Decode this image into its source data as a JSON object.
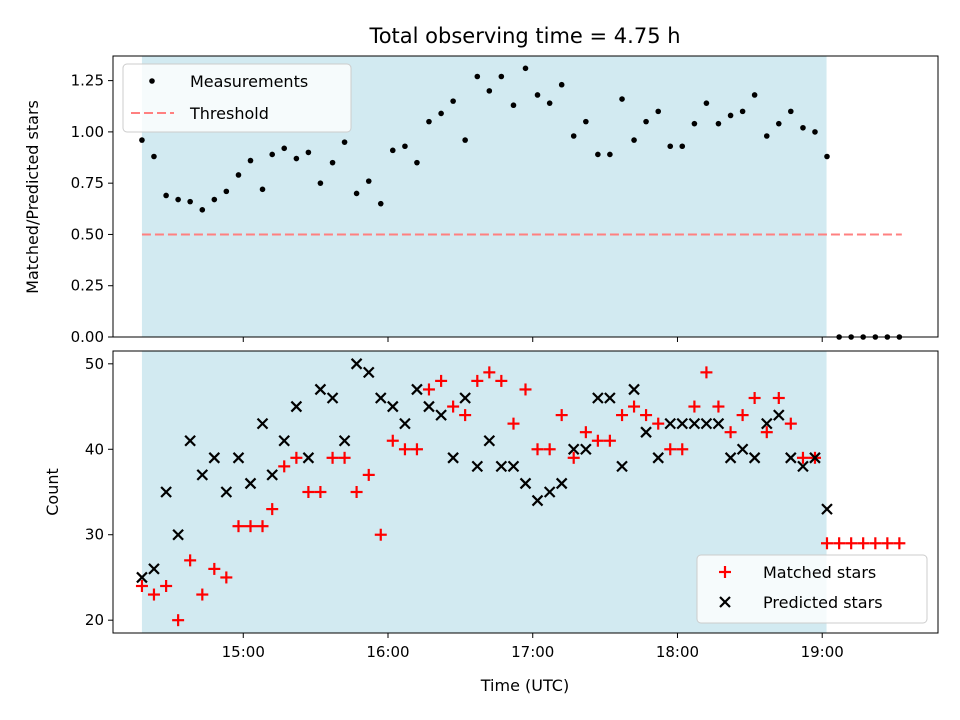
{
  "chart_data": [
    {
      "type": "scatter",
      "title": "Total observing time = 4.75 h",
      "xlabel": "",
      "ylabel": "Matched/Predicted stars",
      "x_unit": "hours (UTC)",
      "xlim": [
        14.1,
        19.8
      ],
      "ylim": [
        0,
        1.37
      ],
      "yticks": [
        0.0,
        0.25,
        0.5,
        0.75,
        1.0,
        1.25
      ],
      "ytick_labels": [
        "0.00",
        "0.25",
        "0.50",
        "0.75",
        "1.00",
        "1.25"
      ],
      "shaded_interval": [
        14.3,
        19.03
      ],
      "shade_color": "#add8e6",
      "legend_position": "upper-left",
      "threshold": {
        "name": "Threshold",
        "value": 0.5,
        "x_range": [
          14.3,
          19.55
        ],
        "color": "#ff8080"
      },
      "series": [
        {
          "name": "Measurements",
          "color": "#000000",
          "marker": "dot",
          "x": [
            14.3,
            14.383,
            14.467,
            14.55,
            14.633,
            14.717,
            14.8,
            14.883,
            14.967,
            15.05,
            15.133,
            15.2,
            15.283,
            15.367,
            15.45,
            15.533,
            15.617,
            15.7,
            15.783,
            15.867,
            15.95,
            16.033,
            16.117,
            16.2,
            16.283,
            16.367,
            16.45,
            16.533,
            16.617,
            16.7,
            16.783,
            16.867,
            16.95,
            17.033,
            17.117,
            17.2,
            17.283,
            17.367,
            17.45,
            17.533,
            17.617,
            17.7,
            17.783,
            17.867,
            17.95,
            18.033,
            18.117,
            18.2,
            18.283,
            18.367,
            18.45,
            18.533,
            18.617,
            18.7,
            18.783,
            18.867,
            18.95,
            19.033,
            19.117,
            19.2,
            19.283,
            19.367,
            19.45,
            19.533
          ],
          "y": [
            0.96,
            0.88,
            0.69,
            0.67,
            0.66,
            0.62,
            0.67,
            0.71,
            0.79,
            0.86,
            0.72,
            0.89,
            0.92,
            0.87,
            0.9,
            0.75,
            0.85,
            0.95,
            0.7,
            0.76,
            0.65,
            0.91,
            0.93,
            0.85,
            1.05,
            1.09,
            1.15,
            0.96,
            1.27,
            1.2,
            1.27,
            1.13,
            1.31,
            1.18,
            1.14,
            1.23,
            0.98,
            1.05,
            0.89,
            0.89,
            1.16,
            0.96,
            1.05,
            1.1,
            0.93,
            0.93,
            1.04,
            1.14,
            1.04,
            1.08,
            1.1,
            1.18,
            0.98,
            1.04,
            1.1,
            1.02,
            1.0,
            0.88,
            0.0,
            0.0,
            0.0,
            0.0,
            0.0,
            0.0
          ]
        }
      ]
    },
    {
      "type": "scatter",
      "title": "",
      "xlabel": "Time (UTC)",
      "ylabel": "Count",
      "x_unit": "hours (UTC)",
      "xlim": [
        14.1,
        19.8
      ],
      "ylim": [
        18.5,
        51.5
      ],
      "yticks": [
        20,
        30,
        40,
        50
      ],
      "ytick_labels": [
        "20",
        "30",
        "40",
        "50"
      ],
      "xticks": [
        15,
        16,
        17,
        18,
        19
      ],
      "xtick_labels": [
        "15:00",
        "16:00",
        "17:00",
        "18:00",
        "19:00"
      ],
      "shaded_interval": [
        14.3,
        19.03
      ],
      "shade_color": "#add8e6",
      "legend_position": "lower-right",
      "series": [
        {
          "name": "Matched stars",
          "color": "#ff0000",
          "marker": "plus",
          "x": [
            14.3,
            14.383,
            14.467,
            14.55,
            14.633,
            14.717,
            14.8,
            14.883,
            14.967,
            15.05,
            15.133,
            15.2,
            15.283,
            15.367,
            15.45,
            15.533,
            15.617,
            15.7,
            15.783,
            15.867,
            15.95,
            16.033,
            16.117,
            16.2,
            16.283,
            16.367,
            16.45,
            16.533,
            16.617,
            16.7,
            16.783,
            16.867,
            16.95,
            17.033,
            17.117,
            17.2,
            17.283,
            17.367,
            17.45,
            17.533,
            17.617,
            17.7,
            17.783,
            17.867,
            17.95,
            18.033,
            18.117,
            18.2,
            18.283,
            18.367,
            18.45,
            18.533,
            18.617,
            18.7,
            18.783,
            18.867,
            18.95,
            19.033,
            19.117,
            19.2,
            19.283,
            19.367,
            19.45,
            19.533
          ],
          "y": [
            24,
            23,
            24,
            20,
            27,
            23,
            26,
            25,
            31,
            31,
            31,
            33,
            38,
            39,
            35,
            35,
            39,
            39,
            35,
            37,
            30,
            41,
            40,
            40,
            47,
            48,
            45,
            44,
            48,
            49,
            48,
            43,
            47,
            40,
            40,
            44,
            39,
            42,
            41,
            41,
            44,
            45,
            44,
            43,
            40,
            40,
            45,
            49,
            45,
            42,
            44,
            46,
            42,
            46,
            43,
            39,
            39,
            29,
            29,
            29,
            29,
            29,
            29,
            29
          ]
        },
        {
          "name": "Predicted stars",
          "color": "#000000",
          "marker": "x",
          "x": [
            14.3,
            14.383,
            14.467,
            14.55,
            14.633,
            14.717,
            14.8,
            14.883,
            14.967,
            15.05,
            15.133,
            15.2,
            15.283,
            15.367,
            15.45,
            15.533,
            15.617,
            15.7,
            15.783,
            15.867,
            15.95,
            16.033,
            16.117,
            16.2,
            16.283,
            16.367,
            16.45,
            16.533,
            16.617,
            16.7,
            16.783,
            16.867,
            16.95,
            17.033,
            17.117,
            17.2,
            17.283,
            17.367,
            17.45,
            17.533,
            17.617,
            17.7,
            17.783,
            17.867,
            17.95,
            18.033,
            18.117,
            18.2,
            18.283,
            18.367,
            18.45,
            18.533,
            18.617,
            18.7,
            18.783,
            18.867,
            18.95,
            19.033
          ],
          "y": [
            25,
            26,
            35,
            30,
            41,
            37,
            39,
            35,
            39,
            36,
            43,
            37,
            41,
            45,
            39,
            47,
            46,
            41,
            50,
            49,
            46,
            45,
            43,
            47,
            45,
            44,
            39,
            46,
            38,
            41,
            38,
            38,
            36,
            34,
            35,
            36,
            40,
            40,
            46,
            46,
            38,
            47,
            42,
            39,
            43,
            43,
            43,
            43,
            43,
            39,
            40,
            39,
            43,
            44,
            39,
            38,
            39,
            33
          ]
        }
      ]
    }
  ]
}
